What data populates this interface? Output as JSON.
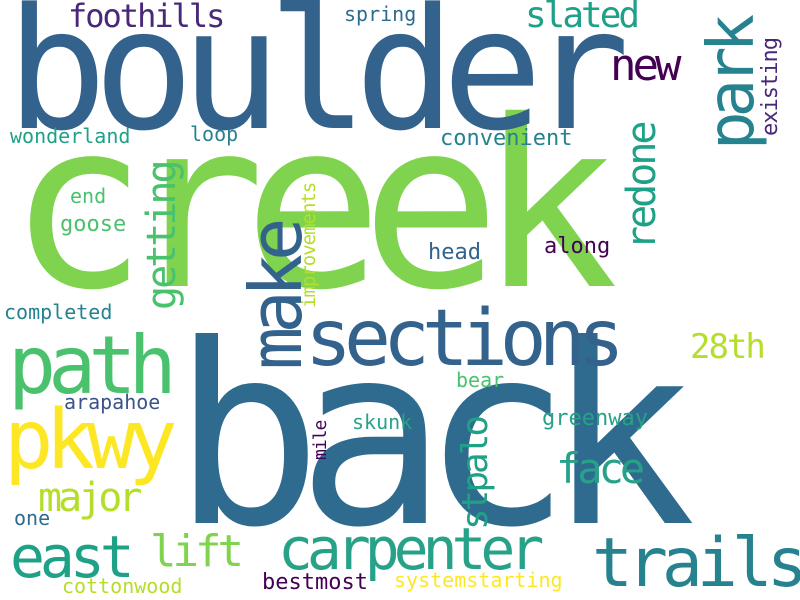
{
  "words": [
    {
      "text": "back"
    },
    {
      "text": "creek"
    },
    {
      "text": "boulder"
    },
    {
      "text": "sections"
    },
    {
      "text": "path"
    },
    {
      "text": "pkwy"
    },
    {
      "text": "make"
    },
    {
      "text": "carpenter"
    },
    {
      "text": "trails"
    },
    {
      "text": "park"
    },
    {
      "text": "east"
    },
    {
      "text": "major"
    },
    {
      "text": "lift"
    },
    {
      "text": "face"
    },
    {
      "text": "new"
    },
    {
      "text": "redone"
    },
    {
      "text": "getting"
    },
    {
      "text": "stpalo"
    },
    {
      "text": "slated"
    },
    {
      "text": "foothills"
    },
    {
      "text": "28th"
    },
    {
      "text": "spring"
    },
    {
      "text": "existing"
    },
    {
      "text": "wonderland"
    },
    {
      "text": "loop"
    },
    {
      "text": "convenient"
    },
    {
      "text": "improvements"
    },
    {
      "text": "end"
    },
    {
      "text": "goose"
    },
    {
      "text": "head"
    },
    {
      "text": "along"
    },
    {
      "text": "completed"
    },
    {
      "text": "bear"
    },
    {
      "text": "arapahoe"
    },
    {
      "text": "greenway"
    },
    {
      "text": "skunk"
    },
    {
      "text": "mile"
    },
    {
      "text": "one"
    },
    {
      "text": "bestmost"
    },
    {
      "text": "systemstarting"
    },
    {
      "text": "cottonwood"
    }
  ]
}
